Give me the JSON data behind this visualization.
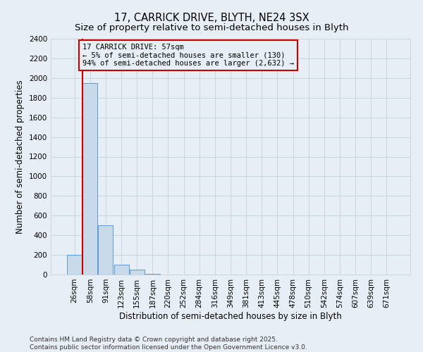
{
  "title": "17, CARRICK DRIVE, BLYTH, NE24 3SX",
  "subtitle": "Size of property relative to semi-detached houses in Blyth",
  "xlabel": "Distribution of semi-detached houses by size in Blyth",
  "ylabel": "Number of semi-detached properties",
  "categories": [
    "26sqm",
    "58sqm",
    "91sqm",
    "123sqm",
    "155sqm",
    "187sqm",
    "220sqm",
    "252sqm",
    "284sqm",
    "316sqm",
    "349sqm",
    "381sqm",
    "413sqm",
    "445sqm",
    "478sqm",
    "510sqm",
    "542sqm",
    "574sqm",
    "607sqm",
    "639sqm",
    "671sqm"
  ],
  "values": [
    200,
    1950,
    500,
    100,
    50,
    10,
    2,
    1,
    0,
    0,
    0,
    0,
    0,
    0,
    0,
    0,
    0,
    0,
    0,
    0,
    0
  ],
  "bar_color": "#c8d9ea",
  "bar_edge_color": "#5b9bd5",
  "ylim": [
    0,
    2400
  ],
  "yticks": [
    0,
    200,
    400,
    600,
    800,
    1000,
    1200,
    1400,
    1600,
    1800,
    2000,
    2200,
    2400
  ],
  "grid_color": "#c8d4e0",
  "bg_color": "#e8eef5",
  "property_line_color": "#cc0000",
  "property_line_x": 0.5,
  "annotation_text": "17 CARRICK DRIVE: 57sqm\n← 5% of semi-detached houses are smaller (130)\n94% of semi-detached houses are larger (2,632) →",
  "annotation_box_color": "#cc0000",
  "footer_line1": "Contains HM Land Registry data © Crown copyright and database right 2025.",
  "footer_line2": "Contains public sector information licensed under the Open Government Licence v3.0.",
  "title_fontsize": 10.5,
  "subtitle_fontsize": 9.5,
  "axis_label_fontsize": 8.5,
  "tick_fontsize": 7.5,
  "annotation_fontsize": 7.5,
  "footer_fontsize": 6.5
}
